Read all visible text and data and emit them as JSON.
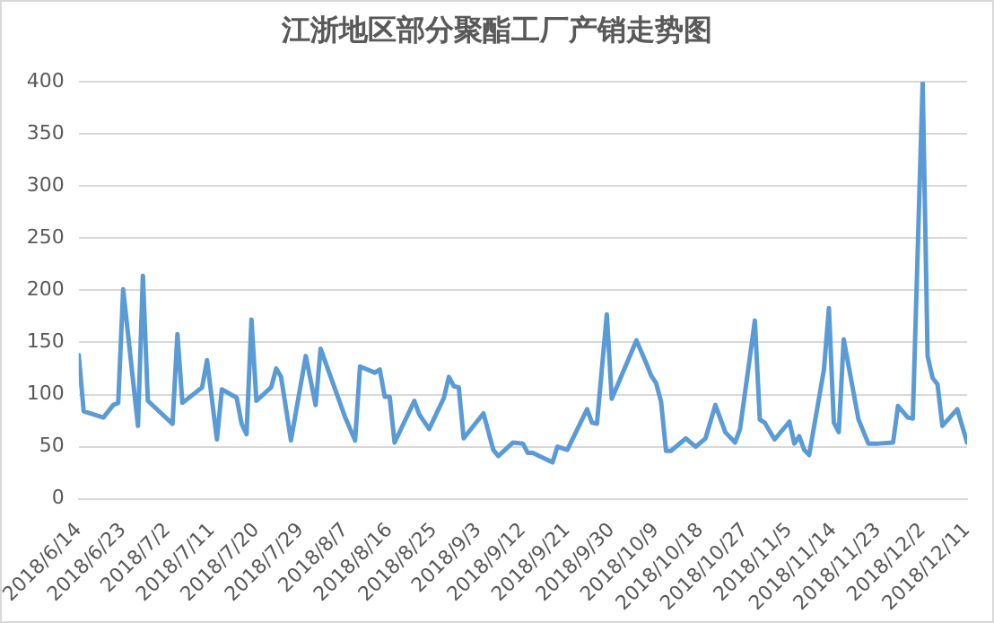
{
  "chart_data": {
    "type": "line",
    "title": "江浙地区部分聚酯工厂产销走势图",
    "x": [
      "2018-06-14",
      "2018-06-15",
      "2018-06-19",
      "2018-06-21",
      "2018-06-22",
      "2018-06-23",
      "2018-06-26",
      "2018-06-27",
      "2018-06-28",
      "2018-07-03",
      "2018-07-04",
      "2018-07-05",
      "2018-07-09",
      "2018-07-10",
      "2018-07-12",
      "2018-07-13",
      "2018-07-16",
      "2018-07-17",
      "2018-07-18",
      "2018-07-19",
      "2018-07-20",
      "2018-07-23",
      "2018-07-24",
      "2018-07-25",
      "2018-07-27",
      "2018-07-30",
      "2018-08-01",
      "2018-08-02",
      "2018-08-07",
      "2018-08-09",
      "2018-08-10",
      "2018-08-13",
      "2018-08-14",
      "2018-08-15",
      "2018-08-16",
      "2018-08-17",
      "2018-08-21",
      "2018-08-22",
      "2018-08-24",
      "2018-08-27",
      "2018-08-28",
      "2018-08-29",
      "2018-08-30",
      "2018-08-31",
      "2018-09-04",
      "2018-09-06",
      "2018-09-07",
      "2018-09-10",
      "2018-09-12",
      "2018-09-13",
      "2018-09-14",
      "2018-09-18",
      "2018-09-19",
      "2018-09-21",
      "2018-09-25",
      "2018-09-26",
      "2018-09-27",
      "2018-09-29",
      "2018-09-30",
      "2018-10-05",
      "2018-10-07",
      "2018-10-08",
      "2018-10-09",
      "2018-10-10",
      "2018-10-11",
      "2018-10-12",
      "2018-10-15",
      "2018-10-17",
      "2018-10-19",
      "2018-10-21",
      "2018-10-23",
      "2018-10-25",
      "2018-10-26",
      "2018-10-29",
      "2018-10-30",
      "2018-10-31",
      "2018-11-02",
      "2018-11-05",
      "2018-11-06",
      "2018-11-07",
      "2018-11-08",
      "2018-11-09",
      "2018-11-12",
      "2018-11-13",
      "2018-11-14",
      "2018-11-15",
      "2018-11-16",
      "2018-11-19",
      "2018-11-21",
      "2018-11-23",
      "2018-11-26",
      "2018-11-27",
      "2018-11-29",
      "2018-11-30",
      "2018-12-02",
      "2018-12-03",
      "2018-12-04",
      "2018-12-05",
      "2018-12-06",
      "2018-12-09",
      "2018-12-11"
    ],
    "series": [
      {
        "color": "#5b9bd5",
        "values": [
          138,
          84,
          78,
          90,
          92,
          201,
          70,
          214,
          94,
          72,
          158,
          92,
          107,
          133,
          57,
          105,
          97,
          72,
          62,
          172,
          94,
          107,
          125,
          117,
          56,
          137,
          90,
          144,
          78,
          56,
          127,
          121,
          124,
          98,
          98,
          54,
          94,
          81,
          67,
          97,
          117,
          108,
          107,
          58,
          82,
          47,
          41,
          54,
          53,
          44,
          44,
          35,
          50,
          47,
          86,
          73,
          72,
          177,
          96,
          152,
          130,
          118,
          111,
          93,
          46,
          46,
          58,
          50,
          58,
          90,
          64,
          54,
          67,
          171,
          76,
          73,
          57,
          74,
          53,
          60,
          47,
          42,
          124,
          183,
          73,
          64,
          153,
          76,
          53,
          53,
          54,
          89,
          78,
          77,
          400,
          137,
          116,
          110,
          70,
          86,
          54
        ]
      }
    ],
    "xlim": [
      "2018-06-14",
      "2018-12-11"
    ],
    "xticks": [
      {
        "value": "2018-06-14",
        "label": "2018/6/14"
      },
      {
        "value": "2018-06-23",
        "label": "2018/6/23"
      },
      {
        "value": "2018-07-02",
        "label": "2018/7/2"
      },
      {
        "value": "2018-07-11",
        "label": "2018/7/11"
      },
      {
        "value": "2018-07-20",
        "label": "2018/7/20"
      },
      {
        "value": "2018-07-29",
        "label": "2018/7/29"
      },
      {
        "value": "2018-08-07",
        "label": "2018/8/7"
      },
      {
        "value": "2018-08-16",
        "label": "2018/8/16"
      },
      {
        "value": "2018-08-25",
        "label": "2018/8/25"
      },
      {
        "value": "2018-09-03",
        "label": "2018/9/3"
      },
      {
        "value": "2018-09-12",
        "label": "2018/9/12"
      },
      {
        "value": "2018-09-21",
        "label": "2018/9/21"
      },
      {
        "value": "2018-09-30",
        "label": "2018/9/30"
      },
      {
        "value": "2018-10-09",
        "label": "2018/10/9"
      },
      {
        "value": "2018-10-18",
        "label": "2018/10/18"
      },
      {
        "value": "2018-10-27",
        "label": "2018/10/27"
      },
      {
        "value": "2018-11-05",
        "label": "2018/11/5"
      },
      {
        "value": "2018-11-14",
        "label": "2018/11/14"
      },
      {
        "value": "2018-11-23",
        "label": "2018/11/23"
      },
      {
        "value": "2018-12-02",
        "label": "2018/12/2"
      },
      {
        "value": "2018-12-11",
        "label": "2018/12/11"
      }
    ],
    "ylim": [
      0,
      400
    ],
    "yticks": [
      0,
      50,
      100,
      150,
      200,
      250,
      300,
      350,
      400
    ],
    "grid": "y",
    "marker": "none",
    "line_style": "solid",
    "legend": false
  }
}
